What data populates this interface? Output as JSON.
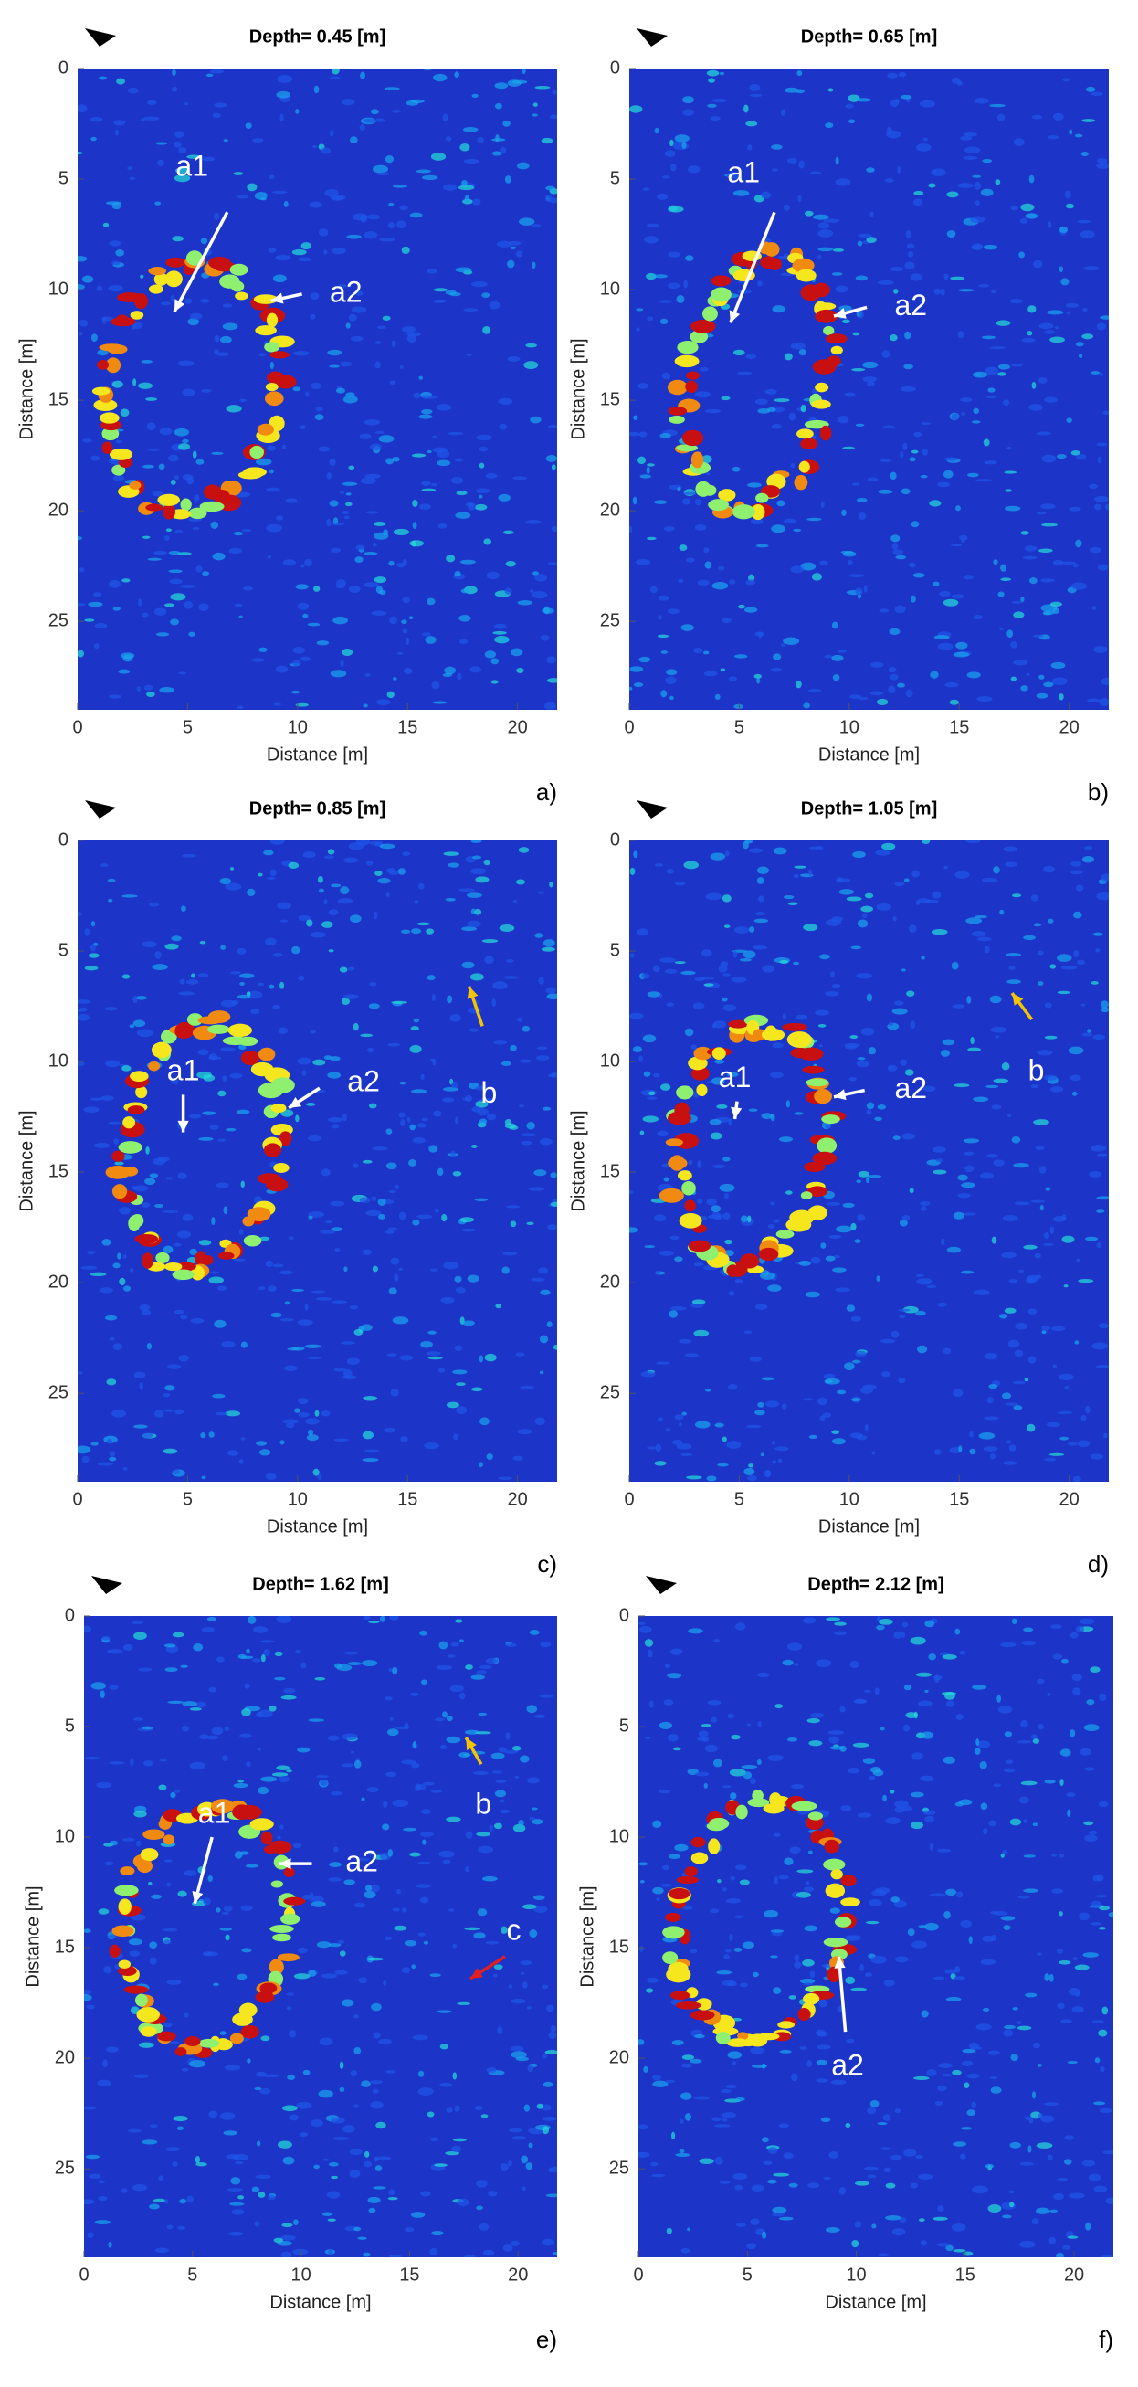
{
  "chart_data": [
    {
      "type": "heatmap",
      "title": "Depth= 0.45 [m]",
      "xlabel": "Distance [m]",
      "ylabel": "Distance [m]",
      "panel_label": "a)",
      "xlim": [
        0,
        21.8
      ],
      "ylim": [
        0,
        29
      ],
      "xticks": [
        0,
        5,
        10,
        15,
        20
      ],
      "yticks": [
        0,
        5,
        10,
        15,
        20,
        25
      ],
      "annotations": [
        "a1",
        "a2"
      ]
    },
    {
      "type": "heatmap",
      "title": "Depth= 0.65 [m]",
      "xlabel": "Distance [m]",
      "ylabel": "Distance [m]",
      "panel_label": "b)",
      "xlim": [
        0,
        21.8
      ],
      "ylim": [
        0,
        29
      ],
      "xticks": [
        0,
        5,
        10,
        15,
        20
      ],
      "yticks": [
        0,
        5,
        10,
        15,
        20,
        25
      ],
      "annotations": [
        "a1",
        "a2"
      ]
    },
    {
      "type": "heatmap",
      "title": "Depth= 0.85 [m]",
      "xlabel": "Distance [m]",
      "ylabel": "Distance [m]",
      "panel_label": "c)",
      "xlim": [
        0,
        21.8
      ],
      "ylim": [
        0,
        29
      ],
      "xticks": [
        0,
        5,
        10,
        15,
        20
      ],
      "yticks": [
        0,
        5,
        10,
        15,
        20,
        25
      ],
      "annotations": [
        "a1",
        "a2",
        "b"
      ]
    },
    {
      "type": "heatmap",
      "title": "Depth= 1.05 [m]",
      "xlabel": "Distance [m]",
      "ylabel": "Distance [m]",
      "panel_label": "d)",
      "xlim": [
        0,
        21.8
      ],
      "ylim": [
        0,
        29
      ],
      "xticks": [
        0,
        5,
        10,
        15,
        20
      ],
      "yticks": [
        0,
        5,
        10,
        15,
        20,
        25
      ],
      "annotations": [
        "a1",
        "a2",
        "b"
      ]
    },
    {
      "type": "heatmap",
      "title": "Depth= 1.62 [m]",
      "xlabel": "Distance [m]",
      "ylabel": "Distance [m]",
      "panel_label": "e)",
      "xlim": [
        0,
        21.8
      ],
      "ylim": [
        0,
        29
      ],
      "xticks": [
        0,
        5,
        10,
        15,
        20
      ],
      "yticks": [
        0,
        5,
        10,
        15,
        20,
        25
      ],
      "annotations": [
        "a1",
        "a2",
        "b",
        "c"
      ]
    },
    {
      "type": "heatmap",
      "title": "Depth= 2.12 [m]",
      "xlabel": "Distance [m]",
      "ylabel": "Distance [m]",
      "panel_label": "f)",
      "xlim": [
        0,
        21.8
      ],
      "ylim": [
        0,
        29
      ],
      "xticks": [
        0,
        5,
        10,
        15,
        20
      ],
      "yticks": [
        0,
        5,
        10,
        15,
        20,
        25
      ],
      "annotations": [
        "a2"
      ]
    }
  ]
}
